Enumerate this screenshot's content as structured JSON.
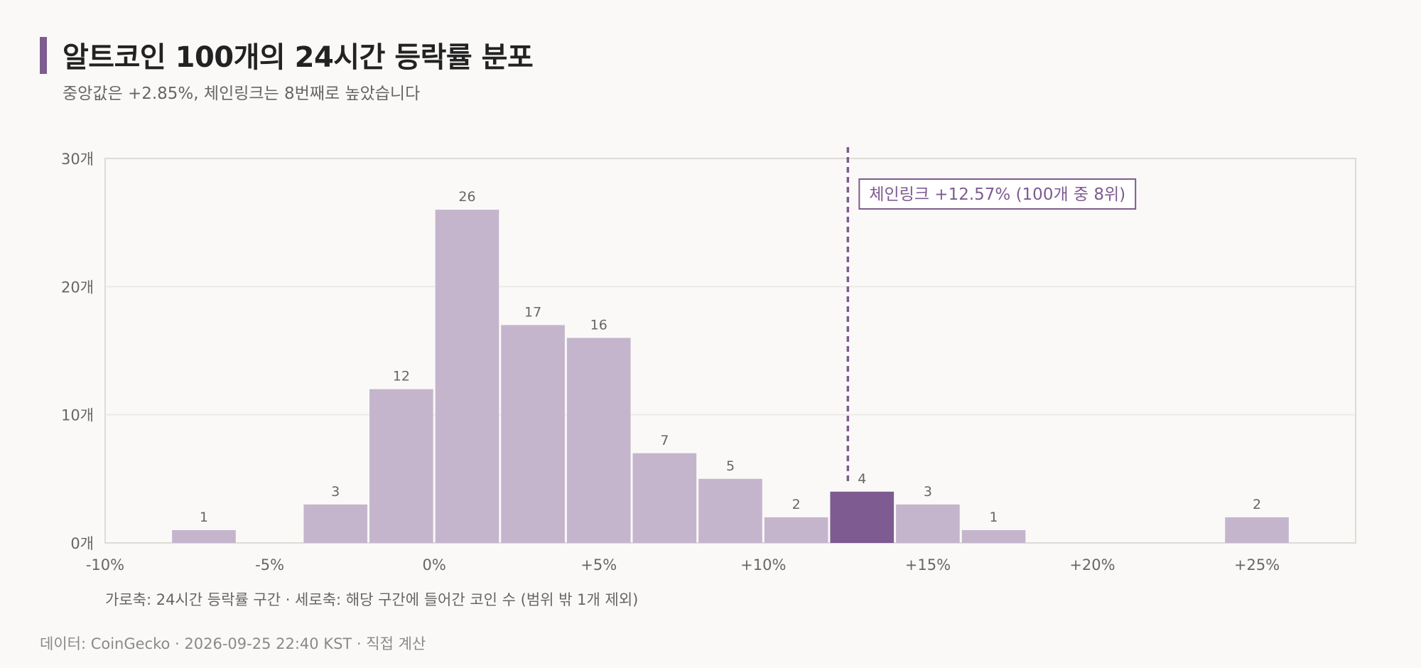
{
  "header": {
    "title": "알트코인 100개의 24시간 등락률 분포",
    "subtitle": "중앙값은 +2.85%, 체인링크는 8번째로 높았습니다"
  },
  "chart_data": {
    "type": "bar",
    "bin_width": 2,
    "bins": [
      {
        "start": -8,
        "end": -6,
        "count": 1
      },
      {
        "start": -6,
        "end": -4,
        "count": 0
      },
      {
        "start": -4,
        "end": -2,
        "count": 3
      },
      {
        "start": -2,
        "end": 0,
        "count": 12
      },
      {
        "start": 0,
        "end": 2,
        "count": 26
      },
      {
        "start": 2,
        "end": 4,
        "count": 17
      },
      {
        "start": 4,
        "end": 6,
        "count": 16
      },
      {
        "start": 6,
        "end": 8,
        "count": 7
      },
      {
        "start": 8,
        "end": 10,
        "count": 5
      },
      {
        "start": 10,
        "end": 12,
        "count": 2
      },
      {
        "start": 12,
        "end": 14,
        "count": 4,
        "highlight": true
      },
      {
        "start": 14,
        "end": 16,
        "count": 3
      },
      {
        "start": 16,
        "end": 18,
        "count": 1
      },
      {
        "start": 18,
        "end": 20,
        "count": 0
      },
      {
        "start": 20,
        "end": 22,
        "count": 0
      },
      {
        "start": 22,
        "end": 24,
        "count": 0
      },
      {
        "start": 24,
        "end": 26,
        "count": 2
      }
    ],
    "xlim": [
      -10,
      28
    ],
    "ylim": [
      0,
      30
    ],
    "x_ticks": [
      {
        "value": -10,
        "label": "-10%"
      },
      {
        "value": -5,
        "label": "-5%"
      },
      {
        "value": 0,
        "label": "0%"
      },
      {
        "value": 5,
        "label": "+5%"
      },
      {
        "value": 10,
        "label": "+10%"
      },
      {
        "value": 15,
        "label": "+15%"
      },
      {
        "value": 20,
        "label": "+20%"
      },
      {
        "value": 25,
        "label": "+25%"
      }
    ],
    "y_ticks": [
      {
        "value": 0,
        "label": "0개"
      },
      {
        "value": 10,
        "label": "10개"
      },
      {
        "value": 20,
        "label": "20개"
      },
      {
        "value": 30,
        "label": "30개"
      }
    ],
    "marker": {
      "value": 12.57,
      "label": "체인링크 +12.57% (100개 중 8위)"
    },
    "grid": true,
    "colors": {
      "bar": "#c4b5cd",
      "highlight": "#7e5b90",
      "marker": "#7e5b90",
      "grid": "#e8e6e2",
      "frame": "#dedbd6"
    },
    "axis_caption": "가로축: 24시간 등락률 구간 · 세로축: 해당 구간에 들어간 코인 수 (범위 밖 1개 제외)"
  },
  "footer": {
    "source": "데이터: CoinGecko · 2026-09-25 22:40 KST · 직접 계산"
  }
}
